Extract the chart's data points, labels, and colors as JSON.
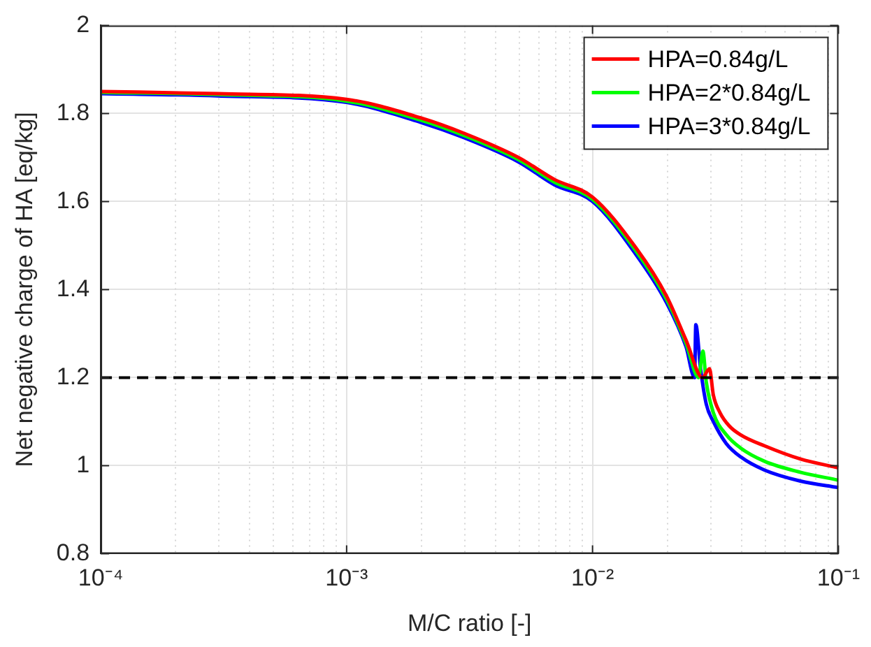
{
  "chart_data": {
    "type": "line",
    "xlabel": "M/C ratio [-]",
    "ylabel": "Net negative charge of HA [eq/kg]",
    "log": "x",
    "xlim": [
      0.0001,
      0.1
    ],
    "xticks": [
      {
        "value": 0.0001,
        "label": "10⁻⁴"
      },
      {
        "value": 0.001,
        "label": "10⁻³"
      },
      {
        "value": 0.01,
        "label": "10⁻²"
      },
      {
        "value": 0.1,
        "label": "10⁻¹"
      }
    ],
    "ylim": [
      0.8,
      2
    ],
    "yticks": [
      0.8,
      1,
      1.2,
      1.4,
      1.6,
      1.8,
      2
    ],
    "grid": true,
    "legend": "top right",
    "marker": "none",
    "line_style": "solid",
    "ref_lines": [
      {
        "axis": "y",
        "value": 1.2,
        "color": "#000000",
        "line_style": "dashed"
      }
    ],
    "series": [
      {
        "name": "HPA=0.84g/L",
        "color": "#ff0000",
        "x": [
          0.0001,
          0.0003,
          0.001,
          0.002,
          0.003,
          0.005,
          0.007,
          0.01,
          0.015,
          0.02,
          0.024,
          0.028,
          0.0299,
          0.031,
          0.033,
          0.036,
          0.04,
          0.05,
          0.07,
          0.1
        ],
        "values": [
          1.85,
          1.845,
          1.832,
          1.79,
          1.755,
          1.7,
          1.65,
          1.61,
          1.495,
          1.385,
          1.285,
          1.2,
          1.22,
          1.16,
          1.12,
          1.09,
          1.07,
          1.045,
          1.015,
          0.995
        ]
      },
      {
        "name": "HPA=2*0.84g/L",
        "color": "#00ff00",
        "x": [
          0.0001,
          0.0003,
          0.001,
          0.002,
          0.003,
          0.005,
          0.007,
          0.01,
          0.015,
          0.02,
          0.024,
          0.027,
          0.0281,
          0.029,
          0.031,
          0.035,
          0.04,
          0.05,
          0.07,
          0.1
        ],
        "values": [
          1.848,
          1.843,
          1.828,
          1.785,
          1.75,
          1.695,
          1.644,
          1.605,
          1.488,
          1.378,
          1.278,
          1.2,
          1.26,
          1.19,
          1.12,
          1.07,
          1.04,
          1.01,
          0.985,
          0.967
        ]
      },
      {
        "name": "HPA=3*0.84g/L",
        "color": "#0000ff",
        "x": [
          0.0001,
          0.0003,
          0.001,
          0.002,
          0.003,
          0.005,
          0.007,
          0.01,
          0.015,
          0.02,
          0.024,
          0.026,
          0.0263,
          0.0275,
          0.029,
          0.031,
          0.035,
          0.04,
          0.05,
          0.07,
          0.1
        ],
        "values": [
          1.845,
          1.84,
          1.825,
          1.78,
          1.745,
          1.69,
          1.638,
          1.6,
          1.48,
          1.37,
          1.27,
          1.2,
          1.32,
          1.22,
          1.14,
          1.1,
          1.05,
          1.02,
          0.99,
          0.965,
          0.95
        ]
      }
    ]
  }
}
